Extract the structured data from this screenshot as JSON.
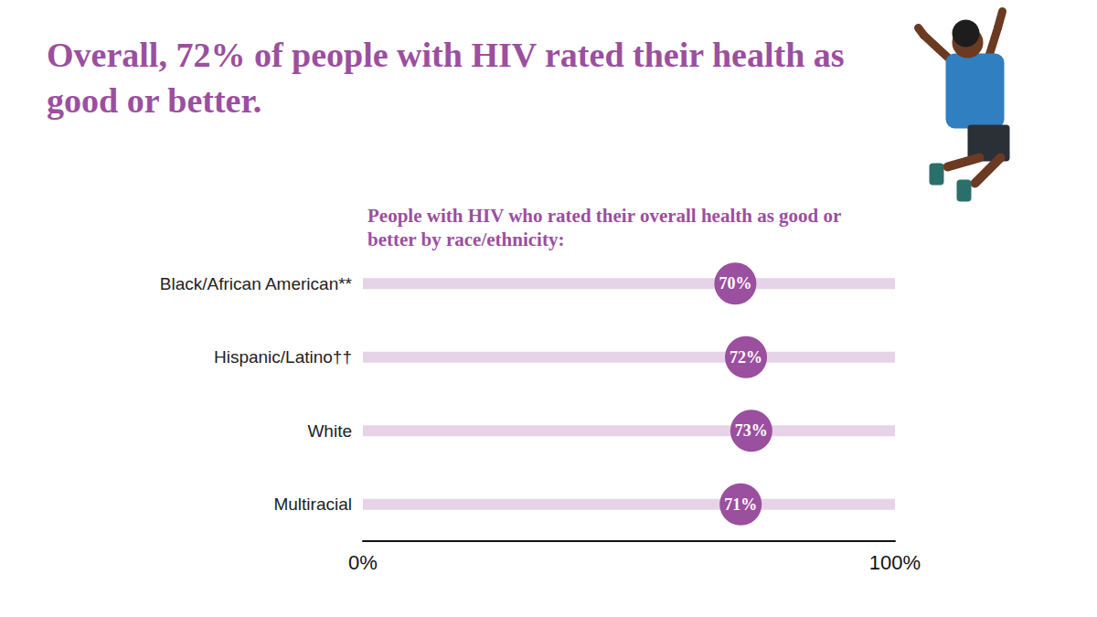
{
  "chart_data": {
    "type": "dot",
    "title": "Overall, 72% of people with HIV rated their health as good or better.",
    "subtitle": "People with HIV who rated their overall health as good or better by race/ethnicity:",
    "categories": [
      "Black/African American**",
      "Hispanic/Latino††",
      "White",
      "Multiracial"
    ],
    "values": [
      70,
      72,
      73,
      71
    ],
    "value_labels": [
      "70%",
      "72%",
      "73%",
      "71%"
    ],
    "data_labels": true,
    "orientation": "horizontal",
    "color": "#9b4f9f",
    "xlim": [
      0,
      100
    ],
    "xticks": [
      {
        "value": 0,
        "label": "0%"
      },
      {
        "value": 100,
        "label": "100%"
      }
    ],
    "grid": false
  }
}
